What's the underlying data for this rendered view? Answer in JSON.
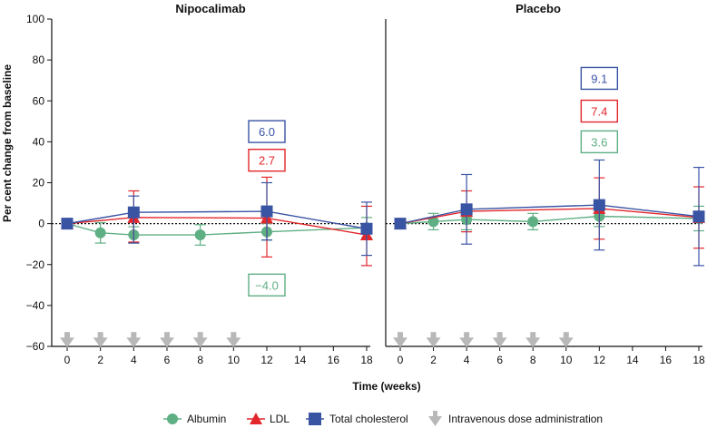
{
  "chart_data": {
    "type": "line",
    "ylabel": "Per cent change from baseline",
    "xlabel": "Time (weeks)",
    "ylim": [
      -60,
      100
    ],
    "yticks": [
      -60,
      -40,
      -20,
      0,
      20,
      40,
      60,
      80,
      100
    ],
    "ytick_labels": [
      "−60",
      "−40",
      "−20",
      "0",
      "20",
      "40",
      "60",
      "80",
      "100"
    ],
    "xlim": [
      0,
      18
    ],
    "xticks": [
      0,
      2,
      4,
      6,
      8,
      10,
      12,
      14,
      16,
      18
    ],
    "baseline": 0,
    "colors": {
      "albumin": "#5faf84",
      "ldl": "#e3262b",
      "total_cholesterol": "#3a54a4",
      "dose": "#b8b8b8",
      "text_primary": "#111111"
    },
    "legend": {
      "albumin": "Albumin",
      "ldl": "LDL",
      "total_cholesterol": "Total cholesterol",
      "dose": "Intravenous dose administration"
    },
    "panels": [
      {
        "title": "Nipocalimab",
        "dose_weeks": [
          0,
          2,
          4,
          6,
          8,
          10
        ],
        "series": [
          {
            "key": "albumin",
            "name": "Albumin",
            "marker": "circle",
            "x": [
              0,
              2,
              4,
              8,
              12,
              18
            ],
            "y": [
              0,
              -4.5,
              -5.5,
              -5.5,
              -4.0,
              -2
            ],
            "err_low": [
              0,
              5,
              4,
              5,
              4,
              5
            ],
            "err_high": [
              0,
              5,
              4,
              5,
              4,
              5
            ]
          },
          {
            "key": "ldl",
            "name": "LDL",
            "marker": "triangle",
            "x": [
              0,
              4,
              12,
              18
            ],
            "y": [
              0,
              3,
              2.7,
              -5.5
            ],
            "err_low": [
              0,
              12,
              19,
              15
            ],
            "err_high": [
              0,
              13,
              20,
              14
            ]
          },
          {
            "key": "total_cholesterol",
            "name": "Total cholesterol",
            "marker": "square",
            "x": [
              0,
              4,
              12,
              18
            ],
            "y": [
              0,
              5.5,
              6.0,
              -2.5
            ],
            "err_low": [
              0,
              15,
              14,
              13
            ],
            "err_high": [
              0,
              8,
              14,
              13
            ]
          }
        ],
        "annotations": [
          {
            "series": "total_cholesterol",
            "text": "6.0",
            "x": 12,
            "y": 45
          },
          {
            "series": "ldl",
            "text": "2.7",
            "x": 12,
            "y": 31
          },
          {
            "series": "albumin",
            "text": "−4.0",
            "x": 12,
            "y": -30
          }
        ]
      },
      {
        "title": "Placebo",
        "dose_weeks": [
          0,
          2,
          4,
          6,
          8,
          10
        ],
        "series": [
          {
            "key": "albumin",
            "name": "Albumin",
            "marker": "circle",
            "x": [
              0,
              2,
              4,
              8,
              12,
              18
            ],
            "y": [
              0,
              1,
              2,
              1,
              3.6,
              2.5
            ],
            "err_low": [
              0,
              4,
              5,
              4,
              5,
              6
            ],
            "err_high": [
              0,
              4,
              5,
              4,
              5,
              6
            ]
          },
          {
            "key": "ldl",
            "name": "LDL",
            "marker": "triangle",
            "x": [
              0,
              4,
              12,
              18
            ],
            "y": [
              0,
              6,
              7.4,
              3
            ],
            "err_low": [
              0,
              10,
              15,
              15
            ],
            "err_high": [
              0,
              10,
              15,
              15
            ]
          },
          {
            "key": "total_cholesterol",
            "name": "Total cholesterol",
            "marker": "square",
            "x": [
              0,
              4,
              12,
              18
            ],
            "y": [
              0,
              7,
              9.1,
              3.5
            ],
            "err_low": [
              0,
              17,
              22,
              24
            ],
            "err_high": [
              0,
              17,
              22,
              24
            ]
          }
        ],
        "annotations": [
          {
            "series": "total_cholesterol",
            "text": "9.1",
            "x": 12,
            "y": 71
          },
          {
            "series": "ldl",
            "text": "7.4",
            "x": 12,
            "y": 55
          },
          {
            "series": "albumin",
            "text": "3.6",
            "x": 12,
            "y": 40
          }
        ]
      }
    ]
  }
}
